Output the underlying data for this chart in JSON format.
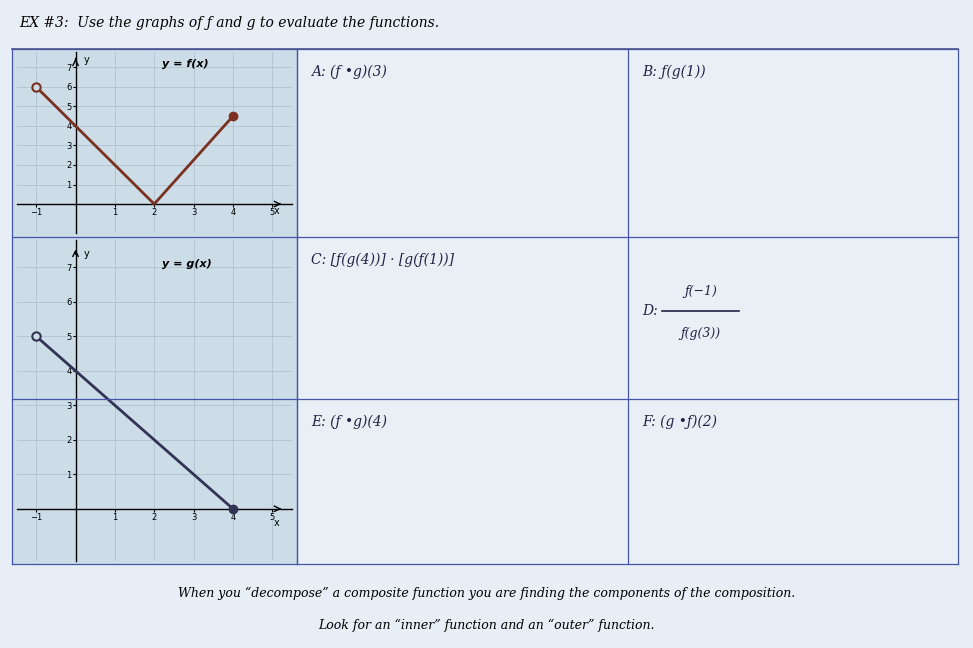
{
  "title": "EX #3:  Use the graphs of ƒ and g to evaluate the functions.",
  "page_bg": "#e8eef5",
  "cell_bg": "#dde8f0",
  "graph_bg": "#ccdde8",
  "grid_color": "#aabbcc",
  "line_color": "#3344aa",
  "fx_color": "#7b3020",
  "gx_color": "#333355",
  "fx_points": [
    [
      -1,
      6
    ],
    [
      2,
      0
    ],
    [
      4,
      4.5
    ]
  ],
  "gx_points": [
    [
      -1,
      5
    ],
    [
      0,
      4
    ],
    [
      4,
      0
    ]
  ],
  "fx_open_dot": [
    -1,
    6
  ],
  "fx_closed_dot": [
    4,
    4.5
  ],
  "gx_open_dot": [
    -1,
    5
  ],
  "gx_closed_dot": [
    4,
    0
  ],
  "cell_A": "A: (ƒ •g)(3)",
  "cell_B": "B: ƒ(g(1))",
  "cell_C": "C: [ƒ(g(4))] · [g(ƒ(1))]",
  "cell_D_label": "D:",
  "cell_D_top": "ƒ(−1)",
  "cell_D_bottom": "ƒ(g(3))",
  "cell_E": "E: (ƒ •g)(4)",
  "cell_F": "F: (g •ƒ)(2)",
  "footer_line1": "When you “decompose” a composite function you are finding the components of the composition.",
  "footer_line2": "Look for an “inner” function and an “outer” function.",
  "xlim": [
    -1.5,
    5.5
  ],
  "ylim": [
    -1.5,
    7.8
  ],
  "xticks": [
    -1,
    1,
    2,
    3,
    4,
    5
  ],
  "yticks": [
    1,
    2,
    3,
    4,
    5,
    6,
    7
  ]
}
